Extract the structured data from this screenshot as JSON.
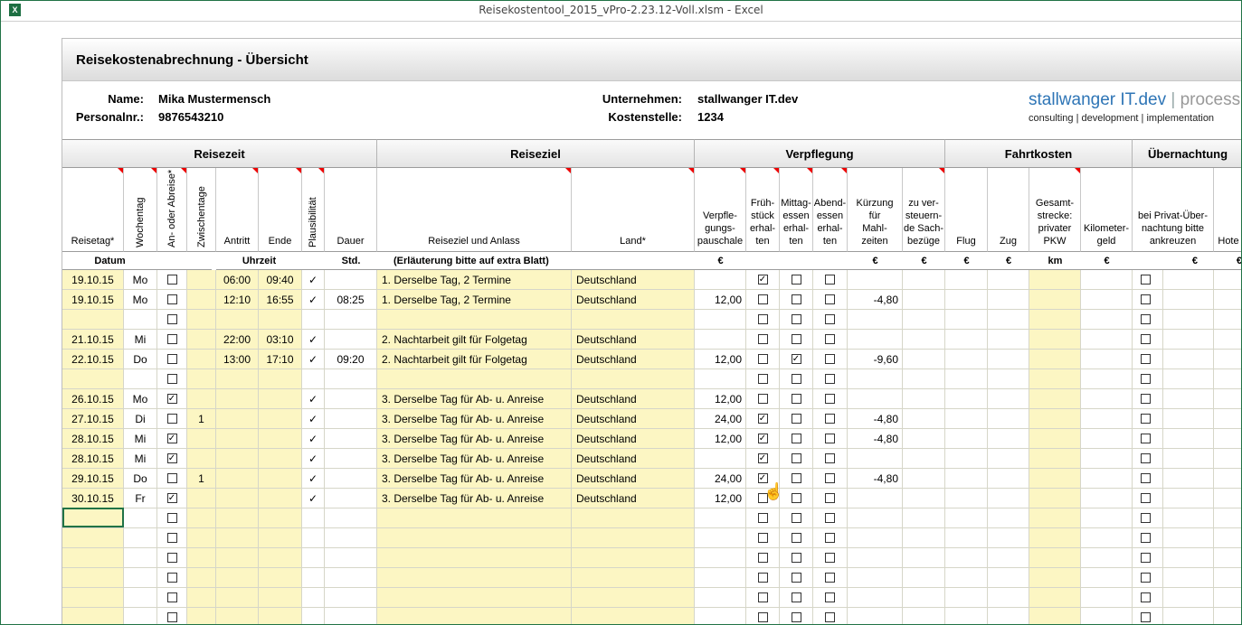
{
  "window": {
    "title": "Reisekostentool_2015_vPro-2.23.12-Voll.xlsm - Excel",
    "app_icon": "excel-icon"
  },
  "sheet": {
    "title": "Reisekostenabrechnung - Übersicht"
  },
  "info": {
    "name_label": "Name:",
    "name_value": "Mika Mustermensch",
    "pnr_label": "Personalnr.:",
    "pnr_value": "9876543210",
    "company_label": "Unternehmen:",
    "company_value": "stallwanger IT.dev",
    "cost_label": "Kostenstelle:",
    "cost_value": "1234"
  },
  "brand": {
    "name": "stallwanger IT.dev",
    "sep": "|",
    "suffix": "process",
    "tagline": "consulting | development | implementation"
  },
  "groups": [
    "Reisezeit",
    "Reiseziel",
    "Verpflegung",
    "Fahrtkosten",
    "Übernachtung"
  ],
  "columns": {
    "reisetag": "Reisetag*",
    "wochentag": "Wochentag",
    "anab": "An- oder Abreise*",
    "zwischen": "Zwischentage",
    "antritt": "Antritt",
    "ende": "Ende",
    "plaus": "Plausibilität",
    "dauer": "Dauer",
    "anlass": "Reiseziel und Anlass",
    "land": "Land*",
    "pauschale": "Verpfle-\ngungs-\npauschale",
    "frueh": "Früh-\nstück\nerhal-\nten",
    "mittag": "Mittag-\nessen\nerhal-\nten",
    "abend": "Abend-\nessen\nerhal-\nten",
    "kuerz": "Kürzung\nfür\nMahl-\nzeiten",
    "sach": "zu ver-\nsteuern-\nde Sach-\nbezüge",
    "flug": "Flug",
    "zug": "Zug",
    "pkw": "Gesamt-\nstrecke:\nprivater\nPKW",
    "kmgeld": "Kilometer-\ngeld",
    "privat": "bei Privat-Über-\nnachtung bitte\nankreuzen",
    "hotel": "Hote"
  },
  "units": {
    "datum": "Datum",
    "uhrzeit": "Uhrzeit",
    "std": "Std.",
    "erl": "(Erläuterung bitte auf extra Blatt)",
    "euro": "€",
    "km": "km"
  },
  "rows": [
    {
      "datum": "19.10.15",
      "tag": "Mo",
      "anab": false,
      "zw": "",
      "antritt": "06:00",
      "ende": "09:40",
      "plaus": "✓",
      "dauer": "",
      "anlass": "1. Derselbe Tag, 2 Termine",
      "land": "Deutschland",
      "pausch": "",
      "f": true,
      "m": false,
      "a": false,
      "k": ""
    },
    {
      "datum": "19.10.15",
      "tag": "Mo",
      "anab": false,
      "zw": "",
      "antritt": "12:10",
      "ende": "16:55",
      "plaus": "✓",
      "dauer": "08:25",
      "anlass": "1. Derselbe Tag, 2 Termine",
      "land": "Deutschland",
      "pausch": "12,00",
      "f": false,
      "m": false,
      "a": false,
      "k": "-4,80"
    },
    {
      "datum": "",
      "tag": "",
      "anab": false,
      "zw": "",
      "antritt": "",
      "ende": "",
      "plaus": "",
      "dauer": "",
      "anlass": "",
      "land": "",
      "pausch": "",
      "f": false,
      "m": false,
      "a": false,
      "k": ""
    },
    {
      "datum": "21.10.15",
      "tag": "Mi",
      "anab": false,
      "zw": "",
      "antritt": "22:00",
      "ende": "03:10",
      "plaus": "✓",
      "dauer": "",
      "anlass": "2. Nachtarbeit gilt für Folgetag",
      "land": "Deutschland",
      "pausch": "",
      "f": false,
      "m": false,
      "a": false,
      "k": ""
    },
    {
      "datum": "22.10.15",
      "tag": "Do",
      "anab": false,
      "zw": "",
      "antritt": "13:00",
      "ende": "17:10",
      "plaus": "✓",
      "dauer": "09:20",
      "anlass": "2. Nachtarbeit gilt für Folgetag",
      "land": "Deutschland",
      "pausch": "12,00",
      "f": false,
      "m": true,
      "a": false,
      "k": "-9,60"
    },
    {
      "datum": "",
      "tag": "",
      "anab": false,
      "zw": "",
      "antritt": "",
      "ende": "",
      "plaus": "",
      "dauer": "",
      "anlass": "",
      "land": "",
      "pausch": "",
      "f": false,
      "m": false,
      "a": false,
      "k": ""
    },
    {
      "datum": "26.10.15",
      "tag": "Mo",
      "anab": true,
      "zw": "",
      "antritt": "",
      "ende": "",
      "plaus": "✓",
      "dauer": "",
      "anlass": "3. Derselbe Tag für Ab- u. Anreise",
      "land": "Deutschland",
      "pausch": "12,00",
      "f": false,
      "m": false,
      "a": false,
      "k": ""
    },
    {
      "datum": "27.10.15",
      "tag": "Di",
      "anab": false,
      "zw": "1",
      "antritt": "",
      "ende": "",
      "plaus": "✓",
      "dauer": "",
      "anlass": "3. Derselbe Tag für Ab- u. Anreise",
      "land": "Deutschland",
      "pausch": "24,00",
      "f": true,
      "m": false,
      "a": false,
      "k": "-4,80"
    },
    {
      "datum": "28.10.15",
      "tag": "Mi",
      "anab": true,
      "zw": "",
      "antritt": "",
      "ende": "",
      "plaus": "✓",
      "dauer": "",
      "anlass": "3. Derselbe Tag für Ab- u. Anreise",
      "land": "Deutschland",
      "pausch": "12,00",
      "f": true,
      "m": false,
      "a": false,
      "k": "-4,80"
    },
    {
      "datum": "28.10.15",
      "tag": "Mi",
      "anab": true,
      "zw": "",
      "antritt": "",
      "ende": "",
      "plaus": "✓",
      "dauer": "",
      "anlass": "3. Derselbe Tag für Ab- u. Anreise",
      "land": "Deutschland",
      "pausch": "",
      "f": true,
      "m": false,
      "a": false,
      "k": ""
    },
    {
      "datum": "29.10.15",
      "tag": "Do",
      "anab": false,
      "zw": "1",
      "antritt": "",
      "ende": "",
      "plaus": "✓",
      "dauer": "",
      "anlass": "3. Derselbe Tag für Ab- u. Anreise",
      "land": "Deutschland",
      "pausch": "24,00",
      "f": true,
      "m": false,
      "a": false,
      "k": "-4,80"
    },
    {
      "datum": "30.10.15",
      "tag": "Fr",
      "anab": true,
      "zw": "",
      "antritt": "",
      "ende": "",
      "plaus": "✓",
      "dauer": "",
      "anlass": "3. Derselbe Tag für Ab- u. Anreise",
      "land": "Deutschland",
      "pausch": "12,00",
      "f": false,
      "m": false,
      "a": false,
      "k": ""
    },
    {
      "datum": "",
      "tag": "",
      "anab": false,
      "zw": "",
      "antritt": "",
      "ende": "",
      "plaus": "",
      "dauer": "",
      "anlass": "",
      "land": "",
      "pausch": "",
      "f": false,
      "m": false,
      "a": false,
      "k": ""
    },
    {
      "datum": "",
      "tag": "",
      "anab": false,
      "zw": "",
      "antritt": "",
      "ende": "",
      "plaus": "",
      "dauer": "",
      "anlass": "",
      "land": "",
      "pausch": "",
      "f": false,
      "m": false,
      "a": false,
      "k": ""
    },
    {
      "datum": "",
      "tag": "",
      "anab": false,
      "zw": "",
      "antritt": "",
      "ende": "",
      "plaus": "",
      "dauer": "",
      "anlass": "",
      "land": "",
      "pausch": "",
      "f": false,
      "m": false,
      "a": false,
      "k": ""
    },
    {
      "datum": "",
      "tag": "",
      "anab": false,
      "zw": "",
      "antritt": "",
      "ende": "",
      "plaus": "",
      "dauer": "",
      "anlass": "",
      "land": "",
      "pausch": "",
      "f": false,
      "m": false,
      "a": false,
      "k": ""
    },
    {
      "datum": "",
      "tag": "",
      "anab": false,
      "zw": "",
      "antritt": "",
      "ende": "",
      "plaus": "",
      "dauer": "",
      "anlass": "",
      "land": "",
      "pausch": "",
      "f": false,
      "m": false,
      "a": false,
      "k": ""
    },
    {
      "datum": "",
      "tag": "",
      "anab": false,
      "zw": "",
      "antritt": "",
      "ende": "",
      "plaus": "",
      "dauer": "",
      "anlass": "",
      "land": "",
      "pausch": "",
      "f": false,
      "m": false,
      "a": false,
      "k": ""
    }
  ],
  "colors": {
    "yellow": "#fcf6c3",
    "border": "#217346",
    "brand_blue": "#2e75b6"
  }
}
